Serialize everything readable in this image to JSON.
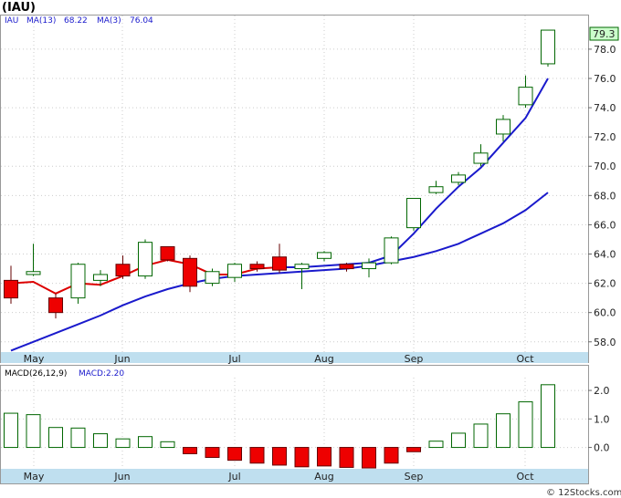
{
  "chart_data": [
    {
      "type": "candlestick",
      "title": "(IAU)",
      "legend": {
        "symbol": "IAU",
        "ma13_label": "MA(13)",
        "ma13_value": "68.22",
        "ma3_label": "MA(3)",
        "ma3_value": "76.04"
      },
      "last_price_label": "79.3",
      "ylim": [
        57.3,
        80.3
      ],
      "y_ticks": [
        "58.0",
        "60.0",
        "62.0",
        "64.0",
        "66.0",
        "68.0",
        "70.0",
        "72.0",
        "74.0",
        "76.0",
        "78.0"
      ],
      "months": [
        "May",
        "Jun",
        "Jul",
        "Aug",
        "Sep",
        "Oct"
      ],
      "candles": [
        {
          "o": 62.2,
          "h": 63.2,
          "l": 60.6,
          "c": 61.0
        },
        {
          "o": 62.6,
          "h": 64.7,
          "l": 62.5,
          "c": 62.8
        },
        {
          "o": 61.0,
          "h": 61.3,
          "l": 59.6,
          "c": 60.0
        },
        {
          "o": 61.0,
          "h": 63.4,
          "l": 60.6,
          "c": 63.3
        },
        {
          "o": 62.2,
          "h": 62.9,
          "l": 61.8,
          "c": 62.6
        },
        {
          "o": 63.3,
          "h": 63.9,
          "l": 62.3,
          "c": 62.5
        },
        {
          "o": 62.5,
          "h": 65.0,
          "l": 62.3,
          "c": 64.8
        },
        {
          "o": 64.5,
          "h": 64.5,
          "l": 63.5,
          "c": 63.6
        },
        {
          "o": 63.7,
          "h": 63.9,
          "l": 61.4,
          "c": 61.8
        },
        {
          "o": 62.0,
          "h": 63.0,
          "l": 61.8,
          "c": 62.8
        },
        {
          "o": 62.4,
          "h": 63.4,
          "l": 62.1,
          "c": 63.3
        },
        {
          "o": 63.3,
          "h": 63.5,
          "l": 62.8,
          "c": 63.0
        },
        {
          "o": 63.8,
          "h": 64.7,
          "l": 62.7,
          "c": 62.9
        },
        {
          "o": 63.0,
          "h": 63.4,
          "l": 61.6,
          "c": 63.3
        },
        {
          "o": 63.7,
          "h": 64.2,
          "l": 63.5,
          "c": 64.1
        },
        {
          "o": 63.3,
          "h": 63.4,
          "l": 62.8,
          "c": 63.0
        },
        {
          "o": 63.0,
          "h": 63.7,
          "l": 62.4,
          "c": 63.4
        },
        {
          "o": 63.4,
          "h": 65.2,
          "l": 63.3,
          "c": 65.1
        },
        {
          "o": 65.8,
          "h": 67.8,
          "l": 65.6,
          "c": 67.8
        },
        {
          "o": 68.2,
          "h": 69.0,
          "l": 68.1,
          "c": 68.6
        },
        {
          "o": 68.9,
          "h": 69.6,
          "l": 68.7,
          "c": 69.4
        },
        {
          "o": 70.2,
          "h": 71.5,
          "l": 70.0,
          "c": 70.9
        },
        {
          "o": 72.2,
          "h": 73.5,
          "l": 71.7,
          "c": 73.2
        },
        {
          "o": 74.2,
          "h": 76.2,
          "l": 74.0,
          "c": 75.4
        },
        {
          "o": 77.0,
          "h": 79.3,
          "l": 76.8,
          "c": 79.3
        }
      ],
      "ma3": [
        62.0,
        62.1,
        61.3,
        62.0,
        61.9,
        62.5,
        63.2,
        63.6,
        63.3,
        62.6,
        62.6,
        63.0,
        63.1,
        63.1,
        63.2,
        63.3,
        63.4,
        63.9,
        65.4,
        67.1,
        68.6,
        69.9,
        71.6,
        73.3,
        76.0
      ],
      "ma13": [
        57.4,
        58.0,
        58.6,
        59.2,
        59.8,
        60.5,
        61.1,
        61.6,
        62.0,
        62.3,
        62.5,
        62.6,
        62.7,
        62.8,
        62.9,
        63.0,
        63.2,
        63.5,
        63.8,
        64.2,
        64.7,
        65.4,
        66.1,
        67.0,
        68.2
      ]
    },
    {
      "type": "bar",
      "label_name": "MACD(26,12,9)",
      "label_value": "MACD:2.20",
      "ylim": [
        -0.75,
        2.45
      ],
      "y_ticks": [
        "0.0",
        "1.0",
        "2.0"
      ],
      "values": [
        1.2,
        1.15,
        0.7,
        0.68,
        0.48,
        0.3,
        0.38,
        0.2,
        -0.22,
        -0.35,
        -0.45,
        -0.55,
        -0.62,
        -0.68,
        -0.65,
        -0.7,
        -0.72,
        -0.55,
        -0.15,
        0.22,
        0.5,
        0.82,
        1.18,
        1.6,
        2.2
      ]
    }
  ],
  "footer": {
    "copyright": "© 12Stocks.com"
  },
  "colors": {
    "bull_border": "#006600",
    "bear_fill": "#ee0000",
    "ma_line": "#1a1acc",
    "axis_bar": "#bfdfef",
    "price_tag_bg": "#ccffcc"
  }
}
